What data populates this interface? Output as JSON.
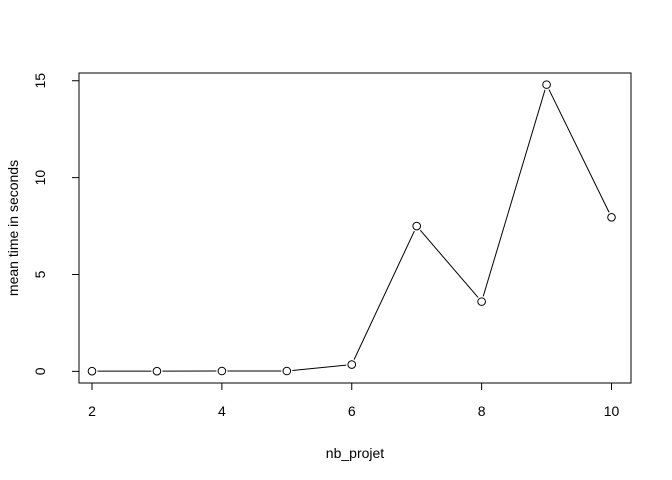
{
  "chart_data": {
    "type": "line",
    "title": "",
    "xlabel": "nb_projet",
    "ylabel": "mean time in seconds",
    "x": [
      2,
      3,
      4,
      5,
      6,
      7,
      8,
      9,
      10
    ],
    "series": [
      {
        "values": [
          0.01,
          0.01,
          0.02,
          0.02,
          0.35,
          7.5,
          3.6,
          14.8,
          7.95
        ]
      }
    ],
    "xlim": [
      1.8,
      10.3
    ],
    "ylim": [
      -0.6,
      15.4
    ],
    "xticks": [
      2,
      4,
      6,
      8,
      10
    ],
    "yticks": [
      0,
      5,
      10,
      15
    ],
    "grid": false,
    "legend": "none",
    "markers": "open-circle",
    "colors": {
      "line": "#000000",
      "marker_fill": "#ffffff",
      "axis": "#000000"
    }
  }
}
